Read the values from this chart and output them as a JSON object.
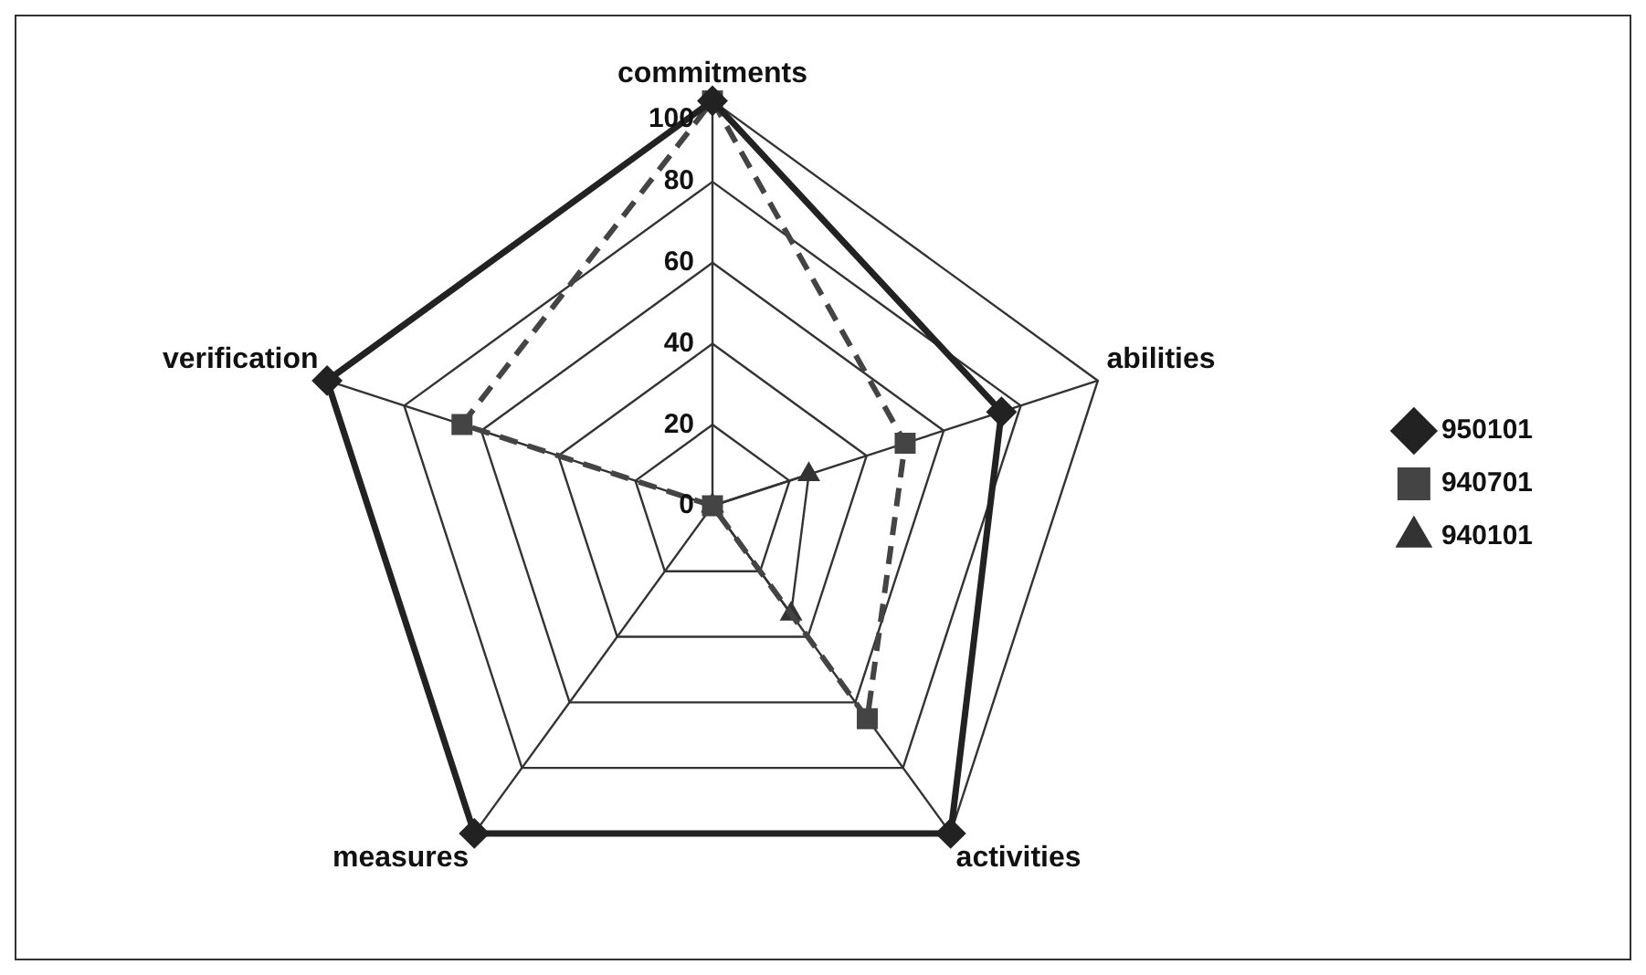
{
  "chart_data": {
    "type": "radar",
    "categories": [
      "commitments",
      "abilities",
      "activities",
      "measures",
      "verification"
    ],
    "series": [
      {
        "name": "950101",
        "color": "#222222",
        "values": [
          100,
          75,
          100,
          100,
          100
        ],
        "marker": "diamond",
        "line_style": "solid"
      },
      {
        "name": "940701",
        "color": "#444444",
        "values": [
          100,
          50,
          65,
          0,
          65
        ],
        "marker": "square",
        "line_style": "dashed"
      },
      {
        "name": "940101",
        "color": "#333333",
        "values": [
          0,
          25,
          33,
          0,
          0
        ],
        "marker": "triangle",
        "line_style": "solid"
      }
    ],
    "ylim": [
      0,
      100
    ],
    "yticks": [
      0,
      20,
      40,
      60,
      80,
      100
    ],
    "grid": true,
    "legend": "right"
  }
}
